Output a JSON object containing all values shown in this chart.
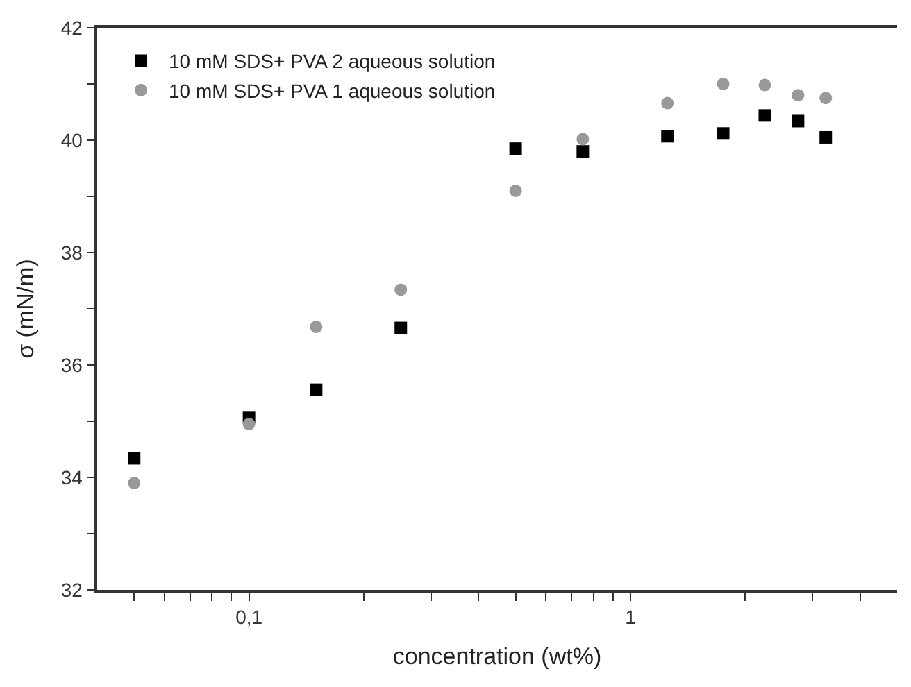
{
  "chart_data": {
    "type": "scatter",
    "xlabel": "concentration (wt%)",
    "ylabel": "σ (mN/m)",
    "log": "x",
    "legend": "top left",
    "xlim": [
      0.04,
      5
    ],
    "xticks": [
      {
        "value": 0.05,
        "label": null
      },
      {
        "value": 0.06,
        "label": null
      },
      {
        "value": 0.07,
        "label": null
      },
      {
        "value": 0.08,
        "label": null
      },
      {
        "value": 0.09,
        "label": null
      },
      {
        "value": 0.1,
        "label": "0,1"
      },
      {
        "value": 0.2,
        "label": null
      },
      {
        "value": 0.3,
        "label": null
      },
      {
        "value": 0.4,
        "label": null
      },
      {
        "value": 0.5,
        "label": null
      },
      {
        "value": 0.6,
        "label": null
      },
      {
        "value": 0.7,
        "label": null
      },
      {
        "value": 0.8,
        "label": null
      },
      {
        "value": 0.9,
        "label": null
      },
      1,
      {
        "value": 2,
        "label": null
      },
      {
        "value": 3,
        "label": null
      },
      {
        "value": 4,
        "label": null
      }
    ],
    "ylim": [
      32,
      42
    ],
    "yticks": [
      32,
      {
        "value": 33,
        "label": null
      },
      34,
      {
        "value": 35,
        "label": null
      },
      36,
      {
        "value": 37,
        "label": null
      },
      38,
      {
        "value": 39,
        "label": null
      },
      40,
      {
        "value": 41,
        "label": null
      },
      42
    ],
    "x": [
      0.05,
      0.1,
      0.15,
      0.25,
      0.5,
      0.75,
      1.25,
      1.75,
      2.25,
      2.75,
      3.25
    ],
    "series": [
      {
        "name": "10 mM SDS+ PVA 2 aqueous solution",
        "color": "#000000",
        "marker": "square",
        "values": [
          34.34,
          35.07,
          35.56,
          36.66,
          39.85,
          39.8,
          40.07,
          40.12,
          40.44,
          40.34,
          40.05
        ]
      },
      {
        "name": "10 mM SDS+ PVA 1 aqueous solution",
        "color": "#999999",
        "marker": "circle",
        "values": [
          33.9,
          34.95,
          36.68,
          37.34,
          39.1,
          40.02,
          40.66,
          41.0,
          40.98,
          40.8,
          40.75
        ]
      }
    ]
  }
}
